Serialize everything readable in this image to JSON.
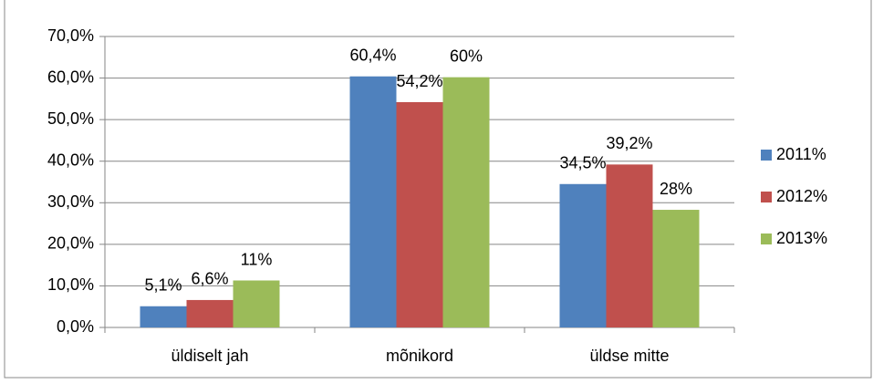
{
  "chart_data": {
    "type": "bar",
    "categories": [
      "üldiselt jah",
      "mõnikord",
      "üldse mitte"
    ],
    "series": [
      {
        "name": "2011%",
        "color": "#4f81bd",
        "values": [
          5.1,
          60.4,
          34.5
        ],
        "value_labels": [
          "5,1%",
          "60,4%",
          "34,5%"
        ]
      },
      {
        "name": "2012%",
        "color": "#c0504d",
        "values": [
          6.6,
          54.2,
          39.2
        ],
        "value_labels": [
          "6,6%",
          "54,2%",
          "39,2%"
        ]
      },
      {
        "name": "2013%",
        "color": "#9bbb59",
        "values": [
          11.3,
          60.2,
          28.3
        ],
        "value_labels": [
          "11%",
          "60%",
          "28%"
        ]
      }
    ],
    "ylim": [
      0,
      70
    ],
    "yticks": [
      {
        "value": 0,
        "label": "0,0%"
      },
      {
        "value": 10,
        "label": "10,0%"
      },
      {
        "value": 20,
        "label": "20,0%"
      },
      {
        "value": 30,
        "label": "30,0%"
      },
      {
        "value": 40,
        "label": "40,0%"
      },
      {
        "value": 50,
        "label": "50,0%"
      },
      {
        "value": 60,
        "label": "60,0%"
      },
      {
        "value": 70,
        "label": "70,0%"
      }
    ],
    "grid": true,
    "legend": "right"
  }
}
